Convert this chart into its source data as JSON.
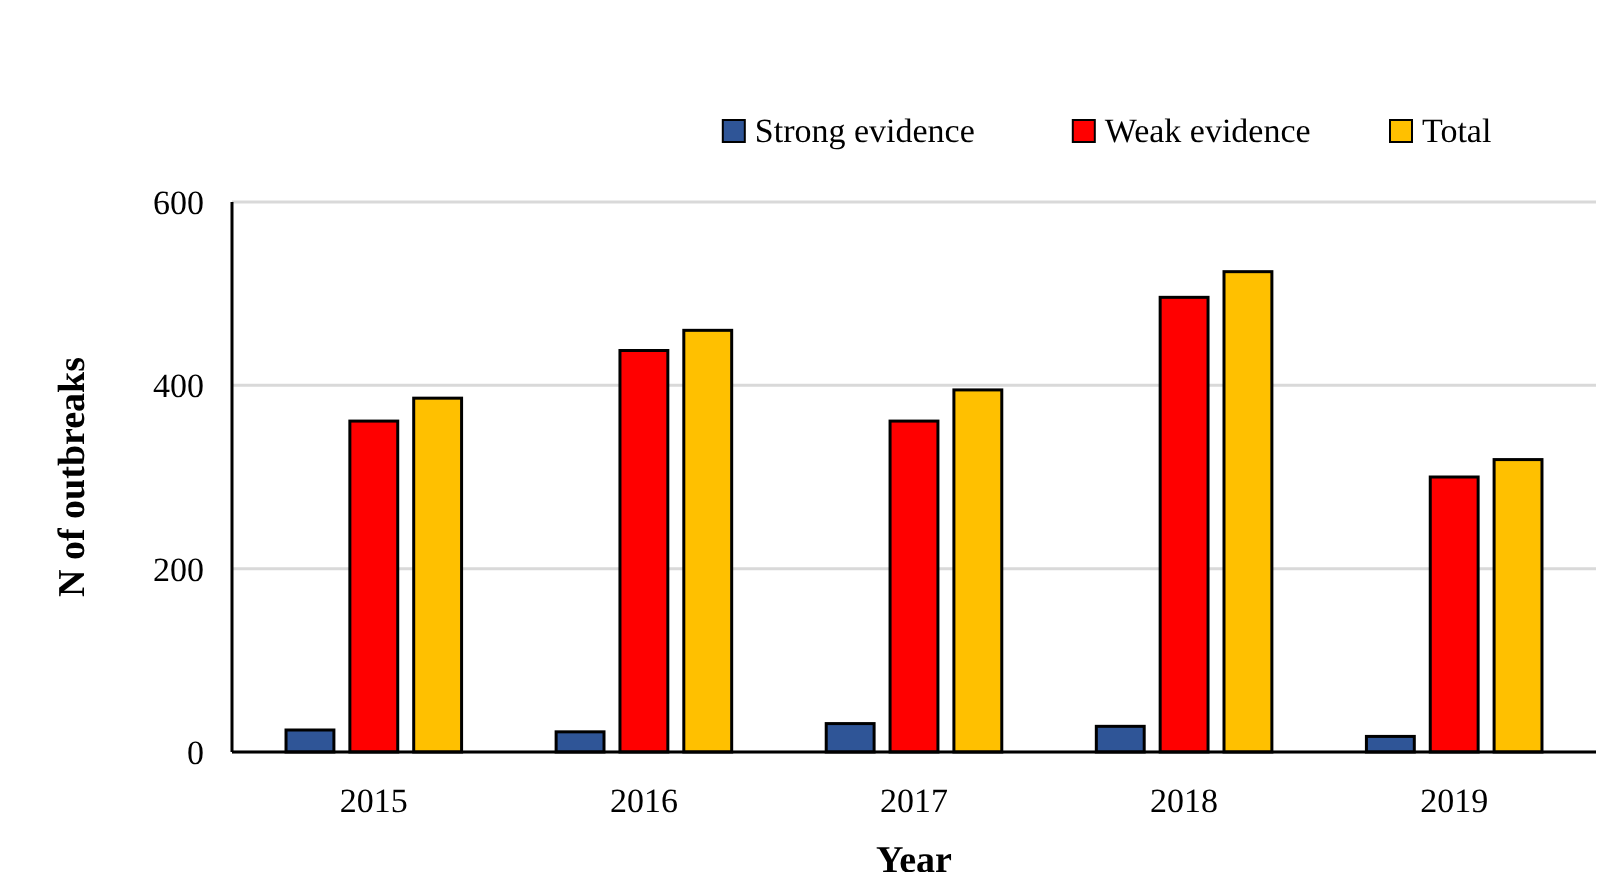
{
  "chart_data": {
    "type": "bar",
    "xlabel": "Year",
    "ylabel": "N of outbreaks",
    "categories": [
      "2015",
      "2016",
      "2017",
      "2018",
      "2019"
    ],
    "series": [
      {
        "name": "Strong evidence",
        "color": "#2f5597",
        "values": [
          24,
          22,
          31,
          28,
          17
        ]
      },
      {
        "name": "Weak evidence",
        "color": "#ff0000",
        "values": [
          361,
          438,
          361,
          496,
          300
        ]
      },
      {
        "name": "Total",
        "color": "#ffc000",
        "values": [
          386,
          460,
          395,
          524,
          319
        ]
      }
    ],
    "ylim": [
      0,
      600
    ],
    "yticks": [
      0,
      200,
      400,
      600
    ],
    "grid": "y",
    "legend": "top right"
  }
}
